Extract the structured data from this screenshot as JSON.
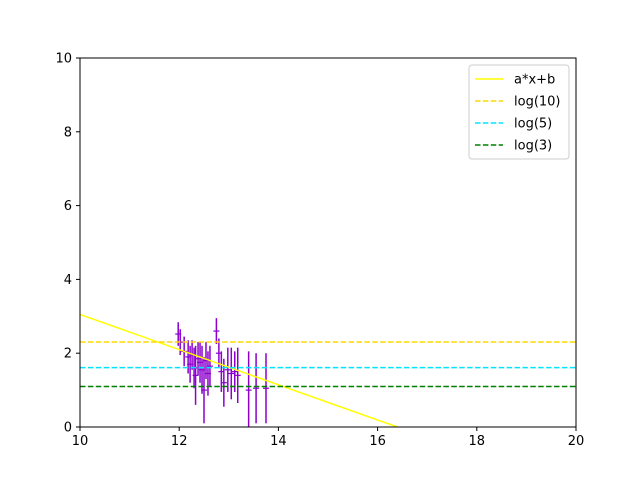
{
  "chart_data": {
    "type": "scatter",
    "title": "",
    "xlabel": "",
    "ylabel": "",
    "xlim": [
      10,
      20
    ],
    "ylim": [
      0,
      10
    ],
    "xticks": [
      10,
      12,
      14,
      16,
      18,
      20
    ],
    "yticks": [
      0,
      2,
      4,
      6,
      8,
      10
    ],
    "grid": false,
    "legend_position": "top-right",
    "series": [
      {
        "name": "",
        "kind": "errorbar",
        "color": "#8b00cc",
        "points": [
          {
            "x": 11.98,
            "y": 2.52,
            "err": 0.32
          },
          {
            "x": 12.02,
            "y": 2.3,
            "err": 0.35
          },
          {
            "x": 12.1,
            "y": 2.05,
            "err": 0.4
          },
          {
            "x": 12.18,
            "y": 1.9,
            "err": 0.45
          },
          {
            "x": 12.22,
            "y": 1.7,
            "err": 0.5
          },
          {
            "x": 12.26,
            "y": 1.95,
            "err": 0.4
          },
          {
            "x": 12.3,
            "y": 1.6,
            "err": 0.55
          },
          {
            "x": 12.33,
            "y": 1.4,
            "err": 0.8
          },
          {
            "x": 12.38,
            "y": 1.85,
            "err": 0.45
          },
          {
            "x": 12.42,
            "y": 1.75,
            "err": 0.55
          },
          {
            "x": 12.46,
            "y": 1.55,
            "err": 0.65
          },
          {
            "x": 12.5,
            "y": 1.0,
            "err": 0.9
          },
          {
            "x": 12.54,
            "y": 1.8,
            "err": 0.5
          },
          {
            "x": 12.58,
            "y": 1.45,
            "err": 0.6
          },
          {
            "x": 12.62,
            "y": 1.65,
            "err": 0.55
          },
          {
            "x": 12.75,
            "y": 2.6,
            "err": 0.35
          },
          {
            "x": 12.8,
            "y": 2.0,
            "err": 0.4
          },
          {
            "x": 12.85,
            "y": 1.5,
            "err": 0.55
          },
          {
            "x": 12.9,
            "y": 1.2,
            "err": 0.65
          },
          {
            "x": 12.98,
            "y": 1.55,
            "err": 0.6
          },
          {
            "x": 13.05,
            "y": 1.45,
            "err": 0.7
          },
          {
            "x": 13.12,
            "y": 1.5,
            "err": 0.55
          },
          {
            "x": 13.18,
            "y": 1.4,
            "err": 0.75
          },
          {
            "x": 13.4,
            "y": 1.0,
            "err": 1.05
          },
          {
            "x": 13.55,
            "y": 1.05,
            "err": 0.95
          },
          {
            "x": 13.75,
            "y": 1.05,
            "err": 0.95
          }
        ]
      },
      {
        "name": "a*x+b",
        "kind": "line",
        "style": "solid",
        "color": "#ffff00",
        "x": [
          10,
          16.4
        ],
        "y": [
          3.05,
          0.0
        ]
      },
      {
        "name": "log(10)",
        "kind": "hline",
        "style": "dashed",
        "color": "#ffd700",
        "y": 2.3026
      },
      {
        "name": "log(5)",
        "kind": "hline",
        "style": "dashed",
        "color": "#00e5ff",
        "y": 1.6094
      },
      {
        "name": "log(3)",
        "kind": "hline",
        "style": "dashed",
        "color": "#008000",
        "y": 1.0986
      }
    ]
  }
}
